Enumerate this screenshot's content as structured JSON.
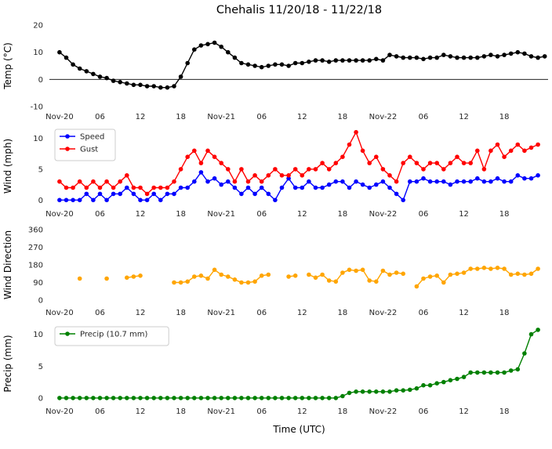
{
  "title": "Chehalis 11/20/18 - 11/22/18",
  "xaxis": {
    "label": "Time (UTC)",
    "xlim": [
      -1.5,
      72.5
    ],
    "tick_positions": [
      0,
      6,
      12,
      18,
      24,
      30,
      36,
      42,
      48,
      54,
      60,
      66
    ],
    "tick_labels": [
      "Nov-20",
      "06",
      "12",
      "18",
      "Nov-21",
      "06",
      "12",
      "18",
      "Nov-22",
      "06",
      "12",
      "18"
    ],
    "x_unit": "hours"
  },
  "chart_data": [
    {
      "type": "line",
      "ylabel": "Temp (°C)",
      "ylim": [
        -10,
        20
      ],
      "yticks": [
        -10,
        0,
        10,
        20
      ],
      "zero_line": true,
      "series": [
        {
          "name": "Temp",
          "color": "#000000",
          "values": [
            10,
            8,
            5.5,
            4,
            3,
            2,
            1,
            0.5,
            -0.5,
            -1,
            -1.5,
            -2,
            -2,
            -2.5,
            -2.5,
            -3,
            -3,
            -2.5,
            1,
            6,
            11,
            12.5,
            13,
            13.5,
            12,
            10,
            8,
            6,
            5.5,
            5,
            4.5,
            5,
            5.5,
            5.5,
            5,
            6,
            6,
            6.5,
            7,
            7,
            6.5,
            7,
            7,
            7,
            7,
            7,
            7,
            7.5,
            7,
            9,
            8.5,
            8,
            8,
            8,
            7.5,
            8,
            8,
            9,
            8.5,
            8,
            8,
            8,
            8,
            8.5,
            9,
            8.5,
            9,
            9.5,
            10,
            9.5,
            8.5,
            8,
            8.5
          ]
        }
      ]
    },
    {
      "type": "line",
      "ylabel": "Wind (mph)",
      "ylim": [
        -0.6,
        11.6
      ],
      "yticks": [
        0,
        5,
        10
      ],
      "legend": {
        "position": "upper-left",
        "entries": [
          "Speed",
          "Gust"
        ]
      },
      "series": [
        {
          "name": "Speed",
          "color": "#0000ff",
          "values": [
            0,
            0,
            0,
            0,
            1,
            0,
            1,
            0,
            1,
            1,
            2,
            1,
            0,
            0,
            1,
            0,
            1,
            1,
            2,
            2,
            3,
            4.5,
            3,
            3.5,
            2.5,
            3,
            2,
            1,
            2,
            1,
            2,
            1,
            0,
            2,
            3.5,
            2,
            2,
            3,
            2,
            2,
            2.5,
            3,
            3,
            2,
            3,
            2.5,
            2,
            2.5,
            3,
            2,
            1,
            0,
            3,
            3,
            3.5,
            3,
            3,
            3,
            2.5,
            3,
            3,
            3,
            3.5,
            3,
            3,
            3.5,
            3,
            3,
            4,
            3.5,
            3.5,
            4
          ]
        },
        {
          "name": "Gust",
          "color": "#ff0000",
          "values": [
            3,
            2,
            2,
            3,
            2,
            3,
            2,
            3,
            2,
            3,
            4,
            2,
            2,
            1,
            2,
            2,
            2,
            3,
            5,
            7,
            8,
            6,
            8,
            7,
            6,
            5,
            3,
            5,
            3,
            4,
            3,
            4,
            5,
            4,
            4,
            5,
            4,
            5,
            5,
            6,
            5,
            6,
            7,
            9,
            11,
            8,
            6,
            7,
            5,
            4,
            3,
            6,
            7,
            6,
            5,
            6,
            6,
            5,
            6,
            7,
            6,
            6,
            8,
            5,
            8,
            9,
            7,
            8,
            9,
            8,
            8.5,
            9
          ]
        }
      ]
    },
    {
      "type": "line",
      "ylabel": "Wind Direction",
      "ylim": [
        -12,
        372
      ],
      "yticks": [
        0,
        90,
        180,
        270,
        360
      ],
      "series": [
        {
          "name": "Wind Direction",
          "color": "#ffa500",
          "values": [
            null,
            null,
            null,
            110,
            null,
            null,
            null,
            110,
            null,
            null,
            115,
            120,
            125,
            null,
            null,
            null,
            null,
            90,
            90,
            95,
            120,
            125,
            110,
            155,
            130,
            120,
            105,
            90,
            90,
            95,
            125,
            130,
            null,
            null,
            120,
            125,
            null,
            130,
            115,
            130,
            100,
            95,
            140,
            155,
            150,
            155,
            100,
            95,
            150,
            130,
            140,
            135,
            null,
            70,
            110,
            120,
            125,
            90,
            130,
            135,
            140,
            160,
            160,
            165,
            160,
            165,
            160,
            130,
            135,
            130,
            135,
            160
          ]
        }
      ]
    },
    {
      "type": "line",
      "ylabel": "Precip (mm)",
      "ylim": [
        -0.5,
        11.3
      ],
      "yticks": [
        0,
        5,
        10
      ],
      "legend": {
        "position": "upper-left",
        "entries": [
          "Precip (10.7 mm)"
        ]
      },
      "series": [
        {
          "name": "Precip (10.7 mm)",
          "color": "#008000",
          "values": [
            0,
            0,
            0,
            0,
            0,
            0,
            0,
            0,
            0,
            0,
            0,
            0,
            0,
            0,
            0,
            0,
            0,
            0,
            0,
            0,
            0,
            0,
            0,
            0,
            0,
            0,
            0,
            0,
            0,
            0,
            0,
            0,
            0,
            0,
            0,
            0,
            0,
            0,
            0,
            0,
            0,
            0,
            0.3,
            0.8,
            1,
            1,
            1,
            1,
            1,
            1,
            1.2,
            1.2,
            1.3,
            1.5,
            2,
            2,
            2.3,
            2.5,
            2.8,
            3,
            3.3,
            4,
            4,
            4,
            4,
            4,
            4,
            4.3,
            4.5,
            7,
            10,
            10.7
          ]
        }
      ]
    }
  ]
}
